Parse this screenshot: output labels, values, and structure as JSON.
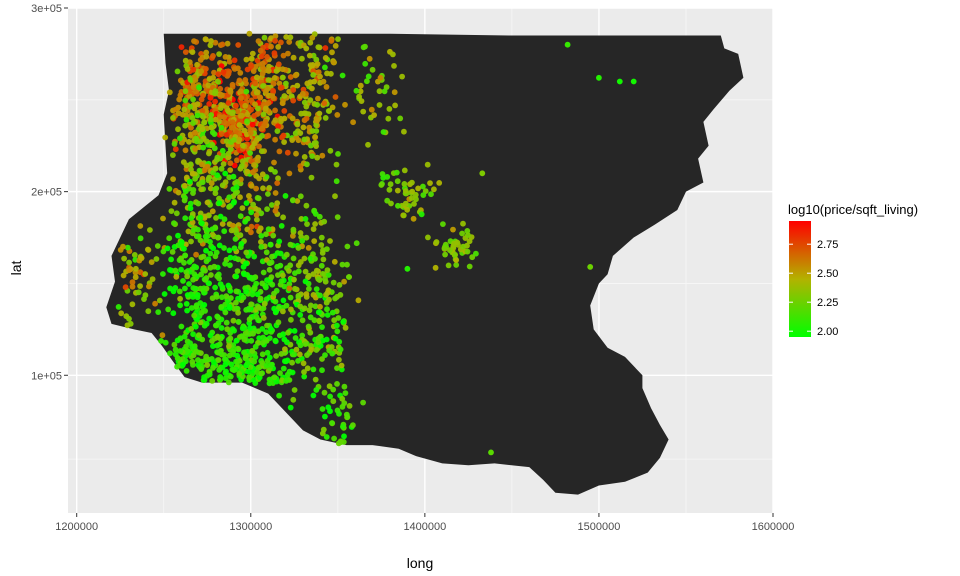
{
  "chart_data": {
    "type": "scatter",
    "title": "",
    "xlabel": "long",
    "ylabel": "lat",
    "xlim": [
      1195000,
      1600000
    ],
    "ylim": [
      25000,
      300000
    ],
    "x_ticks": [
      {
        "value": 1200000,
        "label": "1200000"
      },
      {
        "value": 1300000,
        "label": "1300000"
      },
      {
        "value": 1400000,
        "label": "1400000"
      },
      {
        "value": 1500000,
        "label": "1500000"
      },
      {
        "value": 1600000,
        "label": "1600000"
      }
    ],
    "y_ticks": [
      {
        "value": 100000,
        "label": "1e+05"
      },
      {
        "value": 200000,
        "label": "2e+05"
      },
      {
        "value": 300000,
        "label": "3e+05"
      }
    ],
    "grid": true,
    "panel_background": "#ebebeb",
    "land_color": "#262626",
    "color_scale": {
      "title": "log10(price/sqft_living)",
      "low_color": "#00ff00",
      "high_color": "#ff0000",
      "min": 1.95,
      "max": 2.95,
      "ticks": [
        {
          "value": 2.0,
          "label": "2.00"
        },
        {
          "value": 2.25,
          "label": "2.25"
        },
        {
          "value": 2.5,
          "label": "2.50"
        },
        {
          "value": 2.75,
          "label": "2.75"
        }
      ],
      "legend_position": "right"
    },
    "region_outline": [
      [
        1250000,
        286000
      ],
      [
        1330000,
        286000
      ],
      [
        1380000,
        286000
      ],
      [
        1450000,
        285000
      ],
      [
        1520000,
        285000
      ],
      [
        1570000,
        285000
      ],
      [
        1572000,
        278000
      ],
      [
        1580000,
        275000
      ],
      [
        1583000,
        262000
      ],
      [
        1575000,
        255000
      ],
      [
        1566000,
        245000
      ],
      [
        1560000,
        238000
      ],
      [
        1563000,
        225000
      ],
      [
        1557000,
        218000
      ],
      [
        1560000,
        205000
      ],
      [
        1550000,
        200000
      ],
      [
        1545000,
        190000
      ],
      [
        1532000,
        182000
      ],
      [
        1520000,
        175000
      ],
      [
        1508000,
        165000
      ],
      [
        1505000,
        155000
      ],
      [
        1500000,
        150000
      ],
      [
        1495000,
        138000
      ],
      [
        1497000,
        125000
      ],
      [
        1505000,
        115000
      ],
      [
        1515000,
        110000
      ],
      [
        1525000,
        100000
      ],
      [
        1525000,
        93000
      ],
      [
        1530000,
        82000
      ],
      [
        1535000,
        73000
      ],
      [
        1540000,
        65000
      ],
      [
        1535000,
        55000
      ],
      [
        1528000,
        47000
      ],
      [
        1515000,
        42000
      ],
      [
        1500000,
        40000
      ],
      [
        1488000,
        35000
      ],
      [
        1475000,
        36000
      ],
      [
        1468000,
        43000
      ],
      [
        1460000,
        50000
      ],
      [
        1440000,
        52000
      ],
      [
        1425000,
        51000
      ],
      [
        1410000,
        52000
      ],
      [
        1395000,
        56000
      ],
      [
        1385000,
        60000
      ],
      [
        1370000,
        62000
      ],
      [
        1355000,
        62000
      ],
      [
        1340000,
        65000
      ],
      [
        1330000,
        70000
      ],
      [
        1320000,
        80000
      ],
      [
        1310000,
        90000
      ],
      [
        1295000,
        96000
      ],
      [
        1272000,
        96000
      ],
      [
        1262000,
        99000
      ],
      [
        1255000,
        108000
      ],
      [
        1249000,
        116000
      ],
      [
        1243000,
        123000
      ],
      [
        1233000,
        125000
      ],
      [
        1220000,
        128000
      ],
      [
        1217000,
        137000
      ],
      [
        1222000,
        151000
      ],
      [
        1220000,
        165000
      ],
      [
        1230000,
        185000
      ],
      [
        1247000,
        198000
      ],
      [
        1252000,
        210000
      ],
      [
        1251000,
        225000
      ],
      [
        1250000,
        242000
      ],
      [
        1253000,
        255000
      ],
      [
        1251000,
        270000
      ]
    ],
    "clusters": [
      {
        "x": 1275000,
        "y": 255000,
        "sx": 11000,
        "sy": 16000,
        "n": 240,
        "value": 2.58,
        "spread": 0.14
      },
      {
        "x": 1295000,
        "y": 240000,
        "sx": 7000,
        "sy": 15000,
        "n": 180,
        "value": 2.7,
        "spread": 0.14
      },
      {
        "x": 1310000,
        "y": 260000,
        "sx": 8000,
        "sy": 18000,
        "n": 170,
        "value": 2.55,
        "spread": 0.15
      },
      {
        "x": 1270000,
        "y": 210000,
        "sx": 9000,
        "sy": 22000,
        "n": 190,
        "value": 2.32,
        "spread": 0.15
      },
      {
        "x": 1300000,
        "y": 205000,
        "sx": 9000,
        "sy": 20000,
        "n": 140,
        "value": 2.4,
        "spread": 0.15
      },
      {
        "x": 1335000,
        "y": 255000,
        "sx": 9000,
        "sy": 22000,
        "n": 160,
        "value": 2.45,
        "spread": 0.14
      },
      {
        "x": 1275000,
        "y": 145000,
        "sx": 12000,
        "sy": 28000,
        "n": 250,
        "value": 2.1,
        "spread": 0.12
      },
      {
        "x": 1305000,
        "y": 130000,
        "sx": 12000,
        "sy": 24000,
        "n": 250,
        "value": 2.08,
        "spread": 0.12
      },
      {
        "x": 1332000,
        "y": 155000,
        "sx": 12000,
        "sy": 24000,
        "n": 150,
        "value": 2.28,
        "spread": 0.15
      },
      {
        "x": 1338000,
        "y": 120000,
        "sx": 9000,
        "sy": 16000,
        "n": 90,
        "value": 2.18,
        "spread": 0.15
      },
      {
        "x": 1235000,
        "y": 153000,
        "sx": 7000,
        "sy": 15000,
        "n": 55,
        "value": 2.42,
        "spread": 0.15
      },
      {
        "x": 1370000,
        "y": 260000,
        "sx": 8000,
        "sy": 14000,
        "n": 40,
        "value": 2.35,
        "spread": 0.12
      },
      {
        "x": 1390000,
        "y": 200000,
        "sx": 8000,
        "sy": 7000,
        "n": 50,
        "value": 2.32,
        "spread": 0.1
      },
      {
        "x": 1417000,
        "y": 170000,
        "sx": 6000,
        "sy": 7000,
        "n": 45,
        "value": 2.32,
        "spread": 0.1
      },
      {
        "x": 1350000,
        "y": 75000,
        "sx": 7000,
        "sy": 8000,
        "n": 35,
        "value": 2.15,
        "spread": 0.15
      },
      {
        "x": 1260000,
        "y": 108000,
        "sx": 12000,
        "sy": 5000,
        "n": 90,
        "value": 2.1,
        "spread": 0.1
      },
      {
        "x": 1295000,
        "y": 104000,
        "sx": 9000,
        "sy": 5000,
        "n": 80,
        "value": 2.1,
        "spread": 0.1
      }
    ],
    "points": [
      {
        "x": 1482000,
        "y": 280000,
        "value": 2.1
      },
      {
        "x": 1500000,
        "y": 262000,
        "value": 2.05
      },
      {
        "x": 1512000,
        "y": 260000,
        "value": 2.0
      },
      {
        "x": 1520000,
        "y": 260000,
        "value": 2.0
      },
      {
        "x": 1433000,
        "y": 210000,
        "value": 2.3
      },
      {
        "x": 1390000,
        "y": 158000,
        "value": 2.05
      },
      {
        "x": 1495000,
        "y": 159000,
        "value": 2.25
      },
      {
        "x": 1438000,
        "y": 58000,
        "value": 2.2
      }
    ]
  }
}
